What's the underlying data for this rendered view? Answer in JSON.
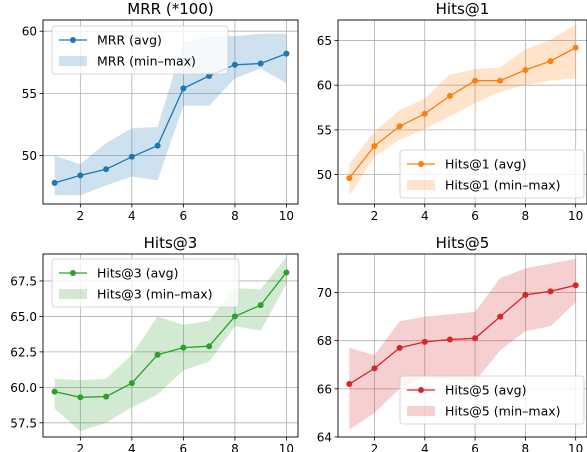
{
  "chart_data": [
    {
      "type": "line",
      "title": "MRR (*100)",
      "xlabel": "",
      "ylabel": "",
      "x": [
        1,
        2,
        3,
        4,
        5,
        6,
        7,
        8,
        9,
        10
      ],
      "xlim": [
        0.55,
        10.45
      ],
      "ylim": [
        46.1,
        60.9
      ],
      "xticks": [
        2,
        4,
        6,
        8,
        10
      ],
      "yticks": [
        50,
        55,
        60
      ],
      "grid": true,
      "legend_position": "top-left",
      "color": "#1f77b4",
      "series": [
        {
          "name": "MRR (avg)",
          "kind": "line",
          "values": [
            47.8,
            48.4,
            48.9,
            49.9,
            50.8,
            55.4,
            56.4,
            57.3,
            57.4,
            58.2
          ]
        },
        {
          "name": "MRR (min–max)",
          "kind": "band",
          "min": [
            46.8,
            46.8,
            47.6,
            48.3,
            48.0,
            54.0,
            54.0,
            56.2,
            57.0,
            55.8
          ],
          "max": [
            50.0,
            49.3,
            51.0,
            52.2,
            52.3,
            59.1,
            59.6,
            59.6,
            59.8,
            59.8
          ]
        }
      ]
    },
    {
      "type": "line",
      "title": "Hits@1",
      "xlabel": "",
      "ylabel": "",
      "x": [
        1,
        2,
        3,
        4,
        5,
        6,
        7,
        8,
        9,
        10
      ],
      "xlim": [
        0.55,
        10.45
      ],
      "ylim": [
        46.7,
        67.3
      ],
      "xticks": [
        2,
        4,
        6,
        8,
        10
      ],
      "yticks": [
        50,
        55,
        60,
        65
      ],
      "grid": true,
      "legend_position": "bottom-right",
      "color": "#ff7f0e",
      "series": [
        {
          "name": "Hits@1 (avg)",
          "kind": "line",
          "values": [
            49.6,
            53.2,
            55.4,
            56.8,
            58.8,
            60.5,
            60.5,
            61.7,
            62.7,
            64.2
          ]
        },
        {
          "name": "Hits@1 (min–max)",
          "kind": "band",
          "min": [
            47.6,
            52.0,
            53.9,
            55.1,
            56.5,
            58.0,
            59.3,
            60.0,
            60.5,
            60.8
          ],
          "max": [
            51.2,
            54.8,
            57.2,
            58.5,
            61.2,
            61.8,
            62.0,
            64.0,
            65.1,
            66.8
          ]
        }
      ]
    },
    {
      "type": "line",
      "title": "Hits@3",
      "xlabel": "",
      "ylabel": "",
      "x": [
        1,
        2,
        3,
        4,
        5,
        6,
        7,
        8,
        9,
        10
      ],
      "xlim": [
        0.55,
        10.45
      ],
      "ylim": [
        56.5,
        69.4
      ],
      "xticks": [
        2,
        4,
        6,
        8,
        10
      ],
      "yticks": [
        57.5,
        60.0,
        62.5,
        65.0,
        67.5
      ],
      "grid": true,
      "legend_position": "top-left",
      "color": "#2ca02c",
      "series": [
        {
          "name": "Hits@3 (avg)",
          "kind": "line",
          "values": [
            59.7,
            59.3,
            59.35,
            60.3,
            62.3,
            62.8,
            62.9,
            65.0,
            65.8,
            68.1
          ]
        },
        {
          "name": "Hits@3 (min–max)",
          "kind": "band",
          "min": [
            58.5,
            56.9,
            57.5,
            58.6,
            59.5,
            61.2,
            61.8,
            64.3,
            64.0,
            67.3
          ]
        },
        {
          "name": "",
          "kind": "band_upper",
          "values": [
            60.6,
            60.5,
            60.6,
            62.3,
            65.0,
            64.4,
            64.7,
            67.0,
            66.9,
            69.2
          ]
        }
      ]
    },
    {
      "type": "line",
      "title": "Hits@5",
      "xlabel": "",
      "ylabel": "",
      "x": [
        1,
        2,
        3,
        4,
        5,
        6,
        7,
        8,
        9,
        10
      ],
      "xlim": [
        0.55,
        10.45
      ],
      "ylim": [
        64.0,
        71.6
      ],
      "xticks": [
        2,
        4,
        6,
        8,
        10
      ],
      "yticks": [
        64,
        66,
        68,
        70
      ],
      "grid": true,
      "legend_position": "bottom-right",
      "color": "#d62728",
      "series": [
        {
          "name": "Hits@5 (avg)",
          "kind": "line",
          "values": [
            66.2,
            66.85,
            67.7,
            67.95,
            68.05,
            68.1,
            69.0,
            69.9,
            70.05,
            70.3
          ]
        },
        {
          "name": "Hits@5 (min–max)",
          "kind": "band",
          "min": [
            64.3,
            65.0,
            66.0,
            66.5,
            66.4,
            66.3,
            67.6,
            68.4,
            68.6,
            69.6
          ],
          "max": [
            67.7,
            67.4,
            68.8,
            69.0,
            69.1,
            69.2,
            70.6,
            71.0,
            71.2,
            71.4
          ]
        }
      ]
    }
  ]
}
